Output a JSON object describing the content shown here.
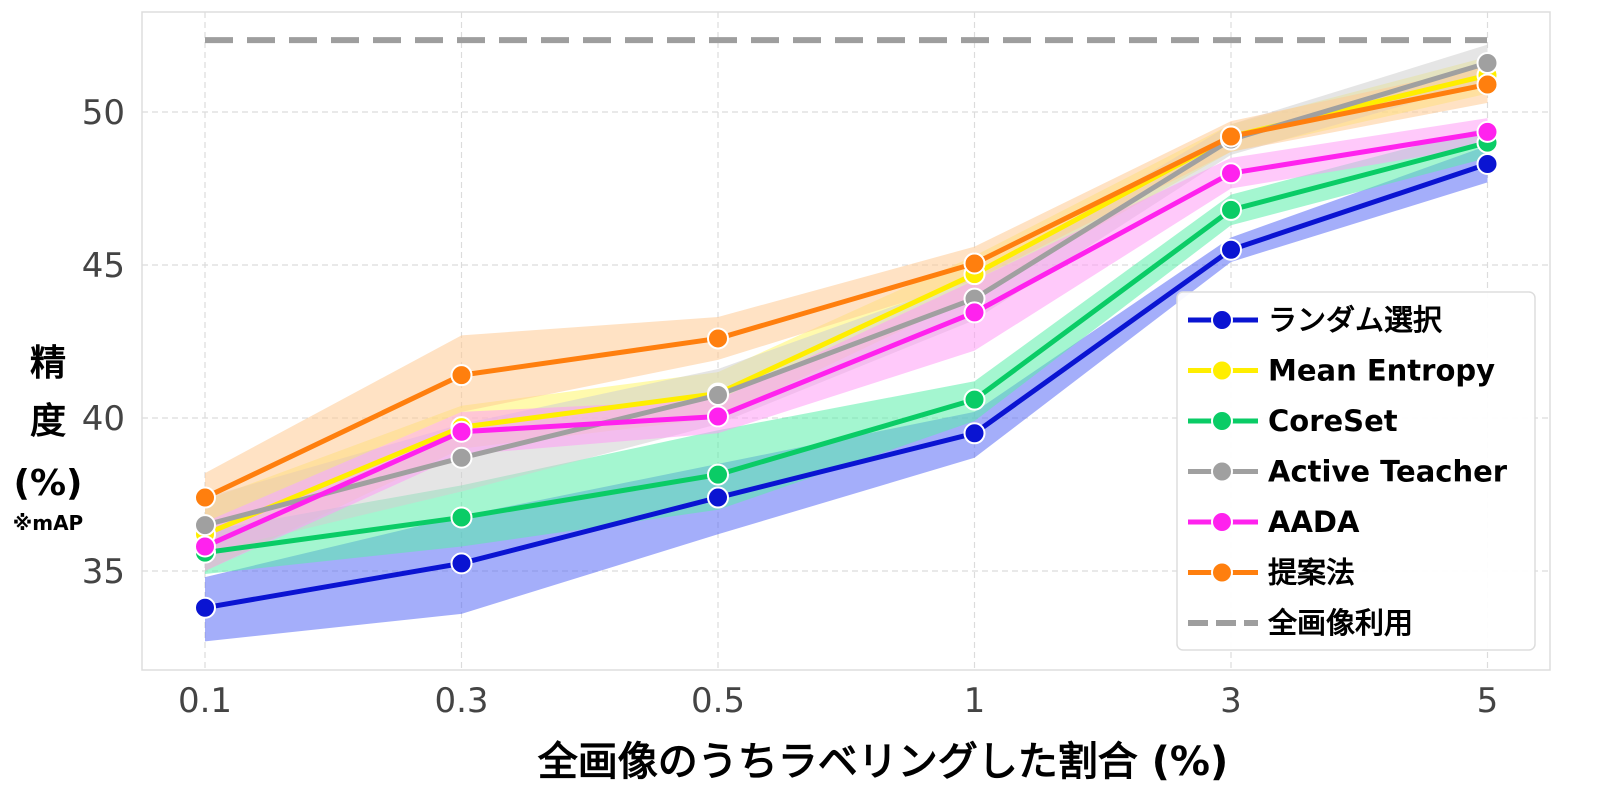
{
  "chart_data": {
    "type": "line",
    "categories": [
      "0.1",
      "0.3",
      "0.5",
      "1",
      "3",
      "5"
    ],
    "xlabel": "全画像のうちラベリングした割合 (%)",
    "ylabel_lines": [
      "精",
      "度",
      "(%)"
    ],
    "ylabel_note": "※mAP",
    "ylim": [
      32,
      53
    ],
    "yticks": [
      35,
      40,
      45,
      50
    ],
    "grid": true,
    "legend_position": "right",
    "series": [
      {
        "name": "ランダム選択",
        "color": "#0a14d2",
        "band_color": "#5a6cf5",
        "values": [
          33.8,
          35.25,
          37.4,
          39.5,
          45.5,
          48.3
        ],
        "lower": [
          32.7,
          33.6,
          36.2,
          38.7,
          45.1,
          47.7
        ],
        "upper": [
          34.8,
          36.8,
          38.5,
          40.2,
          45.9,
          48.9
        ]
      },
      {
        "name": "Mean Entropy",
        "color": "#ffee00",
        "band_color": "#fff66a",
        "values": [
          36.2,
          39.7,
          40.8,
          44.7,
          49.2,
          51.2
        ],
        "lower": [
          35.0,
          39.0,
          40.0,
          44.0,
          48.7,
          50.6
        ],
        "upper": [
          37.3,
          40.4,
          41.5,
          45.3,
          49.6,
          51.8
        ]
      },
      {
        "name": "CoreSet",
        "color": "#0acc66",
        "band_color": "#5aeeaa",
        "values": [
          35.6,
          36.75,
          38.15,
          40.6,
          46.8,
          49.0
        ],
        "lower": [
          34.9,
          35.8,
          37.0,
          39.9,
          46.3,
          48.5
        ],
        "upper": [
          36.3,
          37.8,
          39.6,
          41.2,
          47.3,
          49.5
        ]
      },
      {
        "name": "Active Teacher",
        "color": "#a0a0a0",
        "band_color": "#d0d0d0",
        "values": [
          36.5,
          38.7,
          40.75,
          43.9,
          49.1,
          51.6
        ],
        "lower": [
          35.6,
          37.6,
          39.8,
          43.2,
          48.6,
          51.0
        ],
        "upper": [
          37.4,
          39.8,
          41.6,
          44.6,
          49.6,
          52.2
        ]
      },
      {
        "name": "AADA",
        "color": "#ff22ee",
        "band_color": "#ff9cf5",
        "values": [
          35.8,
          39.55,
          40.05,
          43.45,
          48.0,
          49.35
        ],
        "lower": [
          35.0,
          38.8,
          39.5,
          42.2,
          47.5,
          48.9
        ],
        "upper": [
          36.6,
          40.2,
          40.6,
          44.5,
          48.5,
          49.8
        ]
      },
      {
        "name": "提案法",
        "color": "#ff7f0e",
        "band_color": "#ffcb94",
        "values": [
          37.4,
          41.4,
          42.6,
          45.05,
          49.2,
          50.9
        ],
        "lower": [
          36.6,
          40.2,
          41.9,
          44.5,
          48.7,
          50.3
        ],
        "upper": [
          38.2,
          42.7,
          43.3,
          45.6,
          49.7,
          51.5
        ]
      }
    ],
    "reference_line": {
      "name": "全画像利用",
      "value": 52.35,
      "color": "#9e9e9e"
    },
    "highlight_label_color": "#ff7f0e"
  }
}
